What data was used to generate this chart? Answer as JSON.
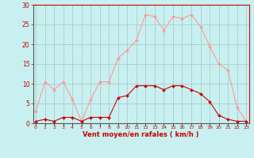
{
  "hours": [
    0,
    1,
    2,
    3,
    4,
    5,
    6,
    7,
    8,
    9,
    10,
    11,
    12,
    13,
    14,
    15,
    16,
    17,
    18,
    19,
    20,
    21,
    22,
    23
  ],
  "wind_mean": [
    0.5,
    1.0,
    0.5,
    1.5,
    1.5,
    0.5,
    1.5,
    1.5,
    1.5,
    6.5,
    7.0,
    9.5,
    9.5,
    9.5,
    8.5,
    9.5,
    9.5,
    8.5,
    7.5,
    5.5,
    2.0,
    1.0,
    0.5,
    0.5
  ],
  "wind_gust": [
    3.0,
    10.5,
    8.5,
    10.5,
    6.0,
    0.5,
    6.0,
    10.5,
    10.5,
    16.5,
    18.5,
    21.0,
    27.5,
    27.0,
    23.5,
    27.0,
    26.5,
    27.5,
    24.5,
    19.5,
    15.0,
    13.5,
    4.0,
    0.5
  ],
  "color_mean": "#cc0000",
  "color_gust": "#ff9999",
  "background": "#c8f0f0",
  "grid_color": "#aacccc",
  "xlabel": "Vent moyen/en rafales ( km/h )",
  "ylim": [
    0,
    30
  ],
  "yticks": [
    0,
    5,
    10,
    15,
    20,
    25,
    30
  ]
}
